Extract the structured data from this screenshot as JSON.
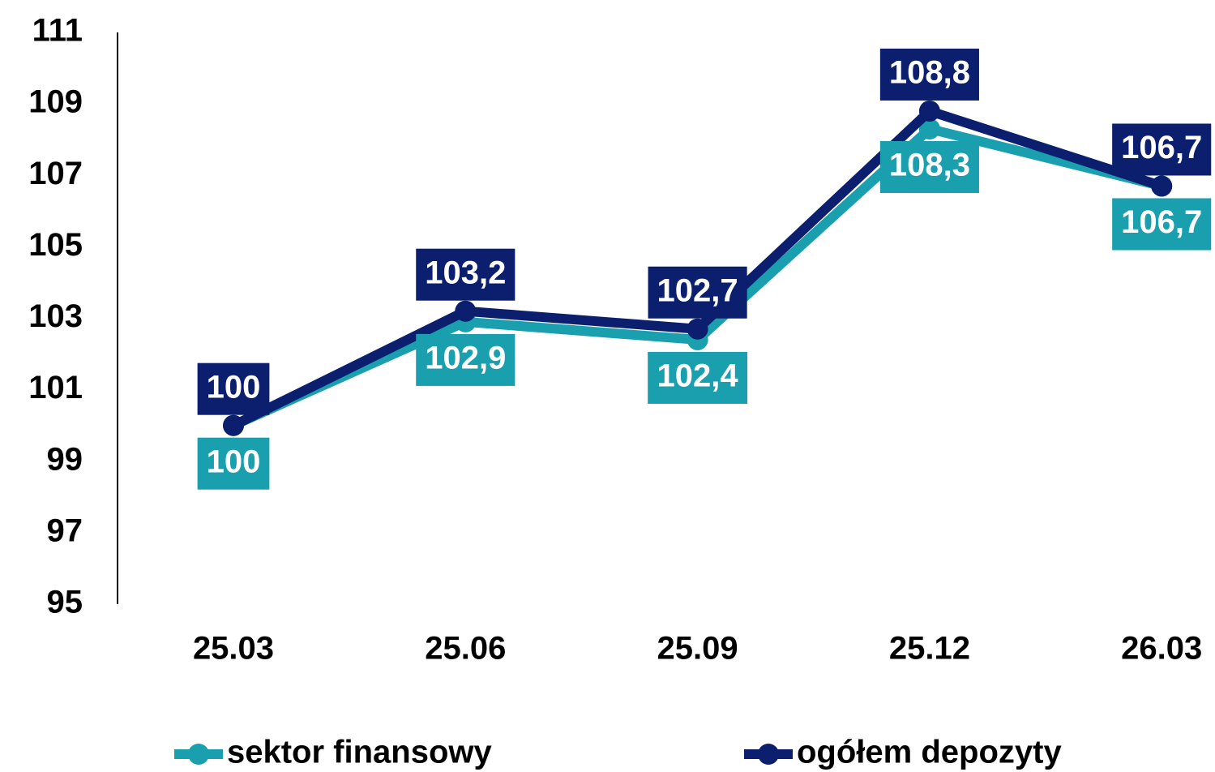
{
  "chart_data": {
    "type": "line",
    "categories": [
      "25.03",
      "25.06",
      "25.09",
      "25.12",
      "26.03"
    ],
    "series": [
      {
        "name": "sektor finansowy",
        "color": "#1a9faf",
        "values": [
          100,
          102.9,
          102.4,
          108.3,
          106.7
        ],
        "value_labels": [
          "100",
          "102,9",
          "102,4",
          "108,3",
          "106,7"
        ]
      },
      {
        "name": "ogółem depozyty",
        "color": "#0b1f6e",
        "values": [
          100,
          103.2,
          102.7,
          108.8,
          106.7
        ],
        "value_labels": [
          "100",
          "103,2",
          "102,7",
          "108,8",
          "106,7"
        ]
      }
    ],
    "ylim": [
      95,
      111
    ],
    "yticks": [
      95,
      97,
      99,
      101,
      103,
      105,
      107,
      109,
      111
    ],
    "grid": false
  }
}
